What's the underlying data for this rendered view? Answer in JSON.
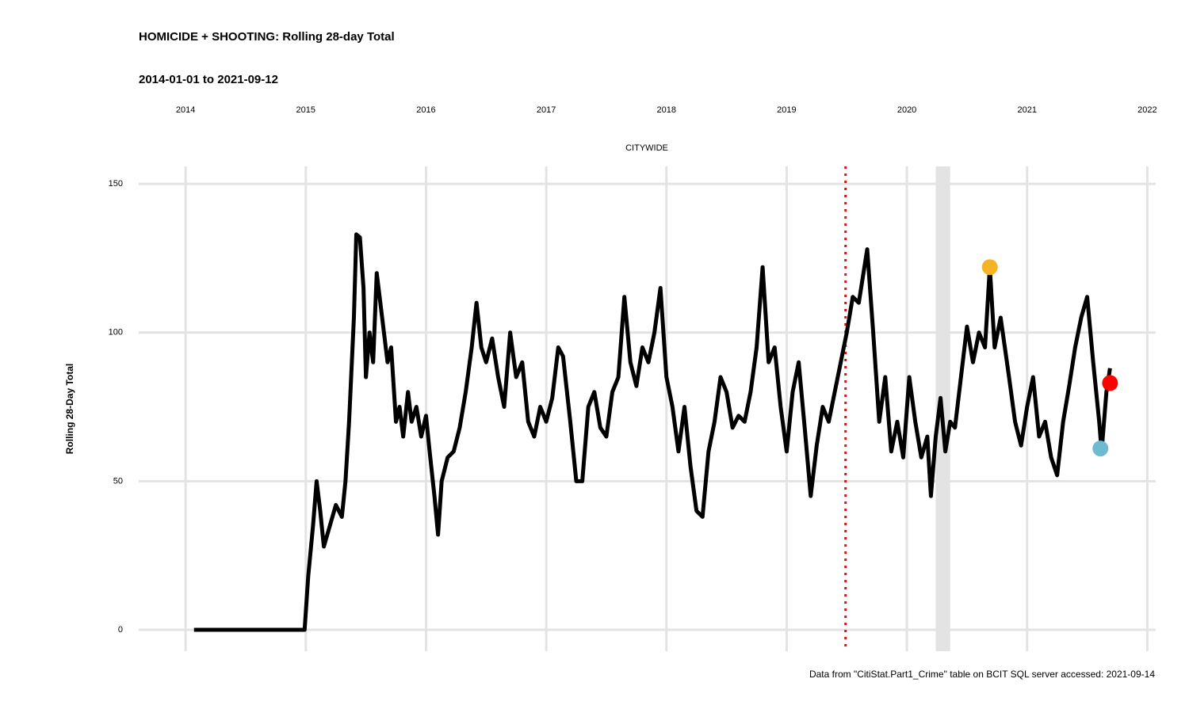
{
  "chart_data": {
    "type": "line",
    "title": "HOMICIDE + SHOOTING: Rolling 28-day Total",
    "subtitle": "2014-01-01 to 2021-09-12",
    "panel_label": "CITYWIDE",
    "ylabel": "Rolling 28-Day Total",
    "caption": "Data from \"CitiStat.Part1_Crime\" table on BCIT SQL server accessed: 2021-09-14",
    "xlim": [
      2013.61,
      2022.07
    ],
    "xticks": [
      2014,
      2015,
      2016,
      2017,
      2018,
      2019,
      2020,
      2021,
      2022
    ],
    "ylim": [
      -7.2,
      155.9
    ],
    "yticks": [
      0,
      50,
      100,
      150
    ],
    "grid": true,
    "color": "#000000",
    "x": [
      2014.07,
      2014.99,
      2015.02,
      2015.06,
      2015.09,
      2015.12,
      2015.15,
      2015.2,
      2015.25,
      2015.3,
      2015.33,
      2015.36,
      2015.4,
      2015.42,
      2015.45,
      2015.48,
      2015.5,
      2015.53,
      2015.56,
      2015.59,
      2015.62,
      2015.65,
      2015.68,
      2015.71,
      2015.75,
      2015.78,
      2015.81,
      2015.85,
      2015.88,
      2015.92,
      2015.96,
      2016.0,
      2016.03,
      2016.07,
      2016.1,
      2016.13,
      2016.18,
      2016.23,
      2016.28,
      2016.33,
      2016.38,
      2016.42,
      2016.46,
      2016.5,
      2016.55,
      2016.6,
      2016.65,
      2016.7,
      2016.75,
      2016.8,
      2016.85,
      2016.9,
      2016.95,
      2017.0,
      2017.05,
      2017.1,
      2017.14,
      2017.2,
      2017.25,
      2017.3,
      2017.35,
      2017.4,
      2017.45,
      2017.5,
      2017.55,
      2017.6,
      2017.65,
      2017.7,
      2017.75,
      2017.8,
      2017.85,
      2017.9,
      2017.95,
      2018.0,
      2018.05,
      2018.1,
      2018.15,
      2018.2,
      2018.25,
      2018.3,
      2018.35,
      2018.4,
      2018.45,
      2018.5,
      2018.55,
      2018.6,
      2018.65,
      2018.7,
      2018.75,
      2018.8,
      2018.85,
      2018.9,
      2018.95,
      2019.0,
      2019.05,
      2019.1,
      2019.15,
      2019.2,
      2019.25,
      2019.3,
      2019.35,
      2019.4,
      2019.45,
      2019.5,
      2019.55,
      2019.6,
      2019.67,
      2019.72,
      2019.77,
      2019.82,
      2019.87,
      2019.92,
      2019.97,
      2020.02,
      2020.07,
      2020.12,
      2020.17,
      2020.2,
      2020.24,
      2020.28,
      2020.32,
      2020.36,
      2020.4,
      2020.45,
      2020.5,
      2020.55,
      2020.6,
      2020.65,
      2020.69,
      2020.73,
      2020.78,
      2020.85,
      2020.9,
      2020.95,
      2021.0,
      2021.05,
      2021.1,
      2021.15,
      2021.2,
      2021.25,
      2021.3,
      2021.35,
      2021.4,
      2021.45,
      2021.5,
      2021.55,
      2021.6,
      2021.62,
      2021.66,
      2021.69
    ],
    "values": [
      0,
      0,
      18,
      35,
      50,
      40,
      28,
      35,
      42,
      38,
      50,
      70,
      105,
      133,
      132,
      115,
      85,
      100,
      90,
      120,
      110,
      100,
      90,
      95,
      70,
      75,
      65,
      80,
      70,
      75,
      65,
      72,
      60,
      45,
      32,
      50,
      58,
      60,
      68,
      80,
      95,
      110,
      95,
      90,
      98,
      85,
      75,
      100,
      85,
      90,
      70,
      65,
      75,
      70,
      78,
      95,
      92,
      70,
      50,
      50,
      75,
      80,
      68,
      65,
      80,
      85,
      112,
      90,
      82,
      95,
      90,
      100,
      115,
      85,
      75,
      60,
      75,
      55,
      40,
      38,
      60,
      70,
      85,
      80,
      68,
      72,
      70,
      80,
      95,
      122,
      90,
      95,
      75,
      60,
      80,
      90,
      68,
      45,
      62,
      75,
      70,
      80,
      90,
      100,
      112,
      110,
      128,
      100,
      70,
      85,
      60,
      70,
      58,
      85,
      70,
      58,
      65,
      45,
      65,
      78,
      60,
      70,
      68,
      85,
      102,
      90,
      100,
      95,
      122,
      95,
      105,
      85,
      70,
      62,
      75,
      85,
      65,
      70,
      58,
      52,
      70,
      82,
      95,
      105,
      112,
      90,
      70,
      60,
      80,
      88
    ],
    "vline": {
      "x": 2019.49,
      "color": "#ff0000"
    },
    "band": [
      2020.24,
      2020.36
    ],
    "points": [
      {
        "x": 2020.69,
        "y": 122,
        "color": "#f5b325"
      },
      {
        "x": 2021.61,
        "y": 61,
        "color": "#6cbbd0"
      },
      {
        "x": 2021.69,
        "y": 83,
        "color": "#ff0000"
      }
    ]
  }
}
